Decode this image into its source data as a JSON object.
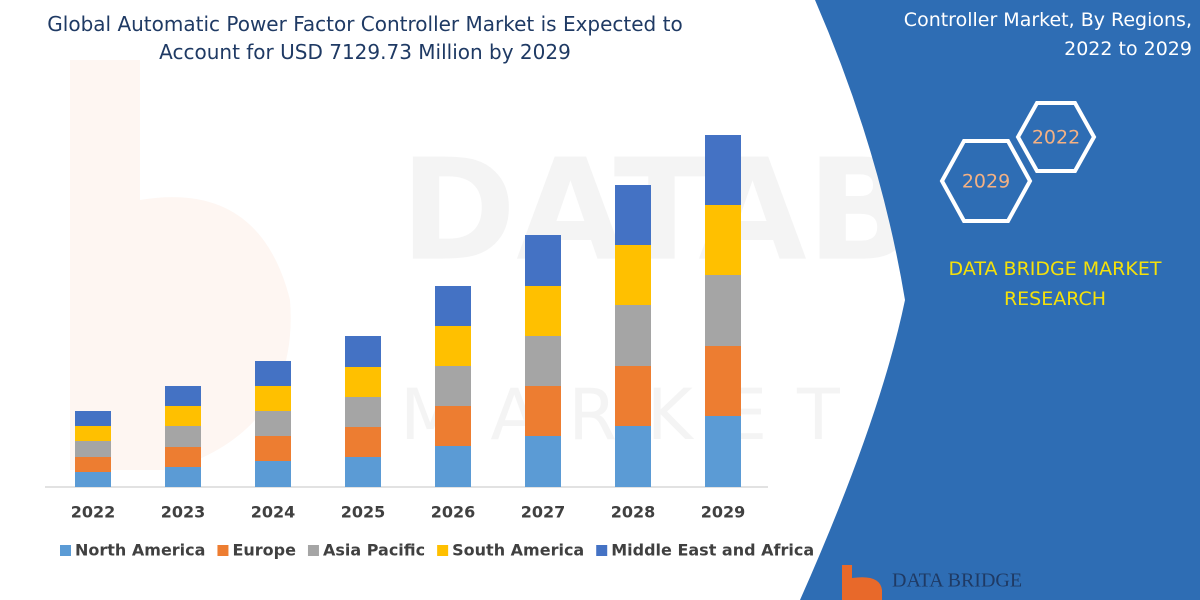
{
  "chart_data": {
    "type": "stacked-bar",
    "title": "Global Automatic Power Factor Controller Market is Expected to Account for USD 7129.73 Million by 2029",
    "categories": [
      "2022",
      "2023",
      "2024",
      "2025",
      "2026",
      "2027",
      "2028",
      "2029"
    ],
    "series": [
      {
        "name": "North America",
        "color": "#5b9bd5",
        "values": [
          15,
          20,
          26,
          30,
          41,
          51,
          61,
          71
        ]
      },
      {
        "name": "Europe",
        "color": "#ed7d31",
        "values": [
          15,
          20,
          25,
          30,
          40,
          50,
          60,
          70
        ]
      },
      {
        "name": "Asia Pacific",
        "color": "#a5a5a5",
        "values": [
          16,
          21,
          25,
          30,
          40,
          50,
          61,
          71
        ]
      },
      {
        "name": "South America",
        "color": "#ffc000",
        "values": [
          15,
          20,
          25,
          30,
          40,
          50,
          60,
          70
        ]
      },
      {
        "name": "Middle East and Africa",
        "color": "#4472c4",
        "values": [
          15,
          20,
          25,
          31,
          40,
          51,
          60,
          70
        ]
      }
    ]
  },
  "side_panel": {
    "title": "Controller Market, By Regions, 2022 to 2029",
    "hexagons": [
      "2022",
      "2029"
    ],
    "brand": "DATA BRIDGE MARKET RESEARCH",
    "logo": "DATA BRIDGE"
  }
}
